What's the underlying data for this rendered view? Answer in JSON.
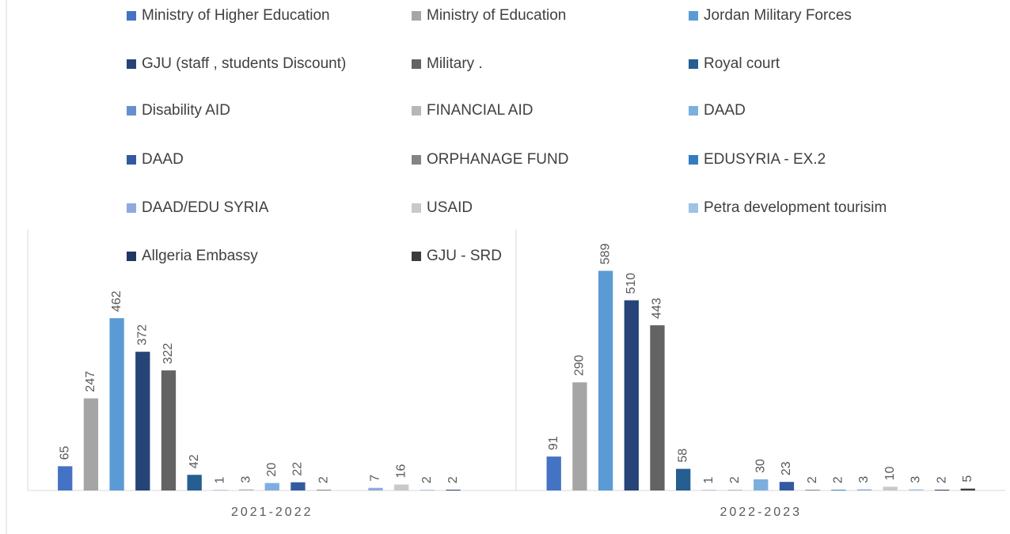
{
  "chart_data": {
    "type": "bar",
    "categories": [
      "2021-2022",
      "2022-2023"
    ],
    "series": [
      {
        "name": "Ministry of Higher Education",
        "color": "#4472c4",
        "values": [
          65,
          91
        ]
      },
      {
        "name": "Ministry of Education",
        "color": "#a5a5a5",
        "values": [
          247,
          290
        ]
      },
      {
        "name": "Jordan Military Forces",
        "color": "#5b9bd5",
        "values": [
          462,
          589
        ]
      },
      {
        "name": "GJU (staff , students Discount)",
        "color": "#264478",
        "values": [
          372,
          510
        ]
      },
      {
        "name": "Military .",
        "color": "#636363",
        "values": [
          322,
          443
        ]
      },
      {
        "name": "Royal court",
        "color": "#255e91",
        "values": [
          42,
          58
        ]
      },
      {
        "name": "Disability AID",
        "color": "#698ed0",
        "values": [
          1,
          1
        ]
      },
      {
        "name": "FINANCIAL AID",
        "color": "#b7b7b7",
        "values": [
          3,
          2
        ]
      },
      {
        "name": "DAAD",
        "color": "#7cafdd",
        "values": [
          20,
          30
        ]
      },
      {
        "name": "DAAD",
        "color": "#335aa1",
        "values": [
          22,
          23
        ]
      },
      {
        "name": "ORPHANAGE FUND",
        "color": "#848484",
        "values": [
          2,
          2
        ]
      },
      {
        "name": "EDUSYRIA - EX.2",
        "color": "#327dc2",
        "values": [
          null,
          2
        ]
      },
      {
        "name": "DAAD/EDU SYRIA",
        "color": "#8faadc",
        "values": [
          7,
          3
        ]
      },
      {
        "name": "USAID",
        "color": "#c9c9c9",
        "values": [
          16,
          10
        ]
      },
      {
        "name": "Petra development tourisim",
        "color": "#9dc3e6",
        "values": [
          2,
          3
        ]
      },
      {
        "name": "Allgeria Embassy",
        "color": "#203864",
        "values": [
          2,
          2
        ]
      },
      {
        "name": "GJU - SRD",
        "color": "#3b3b3b",
        "values": [
          null,
          5
        ]
      }
    ],
    "ylim": [
      0,
      700
    ],
    "legend": "top"
  }
}
